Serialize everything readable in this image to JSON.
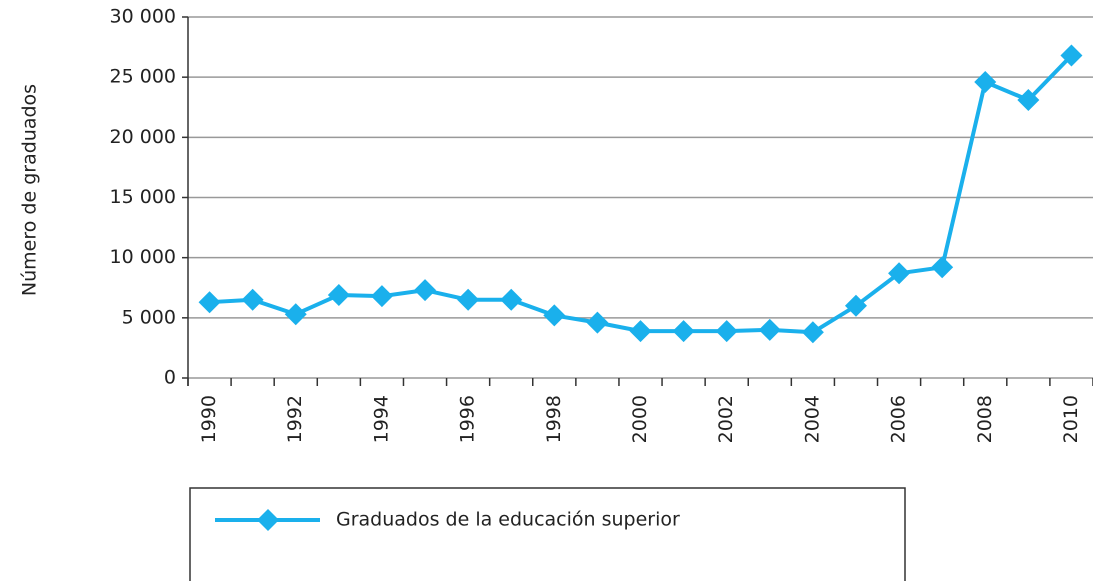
{
  "chart_data": {
    "type": "line",
    "y_label": "Número de graduados",
    "categories": [
      "1990",
      null,
      "1992",
      null,
      "1994",
      null,
      "1996",
      null,
      "1998",
      null,
      "2000",
      null,
      "2002",
      null,
      "2004",
      null,
      "2006",
      null,
      "2008",
      null,
      "2010"
    ],
    "series": [
      {
        "name": "Graduados de la educación superior",
        "color": "#1ab0ec",
        "values": [
          6300,
          6500,
          5300,
          6900,
          6800,
          7300,
          6500,
          6500,
          5200,
          4600,
          3900,
          3900,
          3900,
          4000,
          3800,
          6000,
          8700,
          9200,
          24600,
          23100,
          26800
        ]
      }
    ],
    "ylim": [
      0,
      30000
    ],
    "yticks": [
      0,
      {
        "value": 5000,
        "label": "5 000"
      },
      {
        "value": 10000,
        "label": "10 000"
      },
      {
        "value": 15000,
        "label": "15 000"
      },
      {
        "value": 20000,
        "label": "20 000"
      },
      {
        "value": 25000,
        "label": "25 000"
      },
      {
        "value": 30000,
        "label": "30 000"
      }
    ],
    "grid": true
  }
}
